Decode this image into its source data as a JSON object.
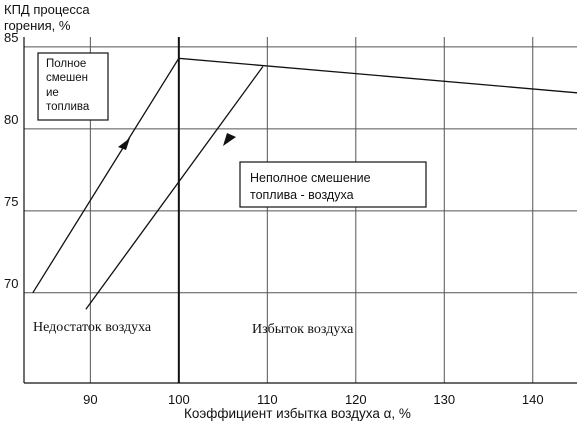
{
  "chart_data": {
    "type": "line",
    "ylabel_lines": [
      "КПД процесса",
      "горения, %"
    ],
    "xlabel": "Коэффициент избытка воздуха α,  %",
    "xlim": [
      82.5,
      145
    ],
    "ylim": [
      64.5,
      85.6
    ],
    "x_ticks": [
      90,
      100,
      110,
      120,
      130,
      140
    ],
    "y_ticks": [
      70,
      75,
      80,
      85
    ],
    "grid": true,
    "series": [
      {
        "name": "Полное смешение топлива",
        "points": [
          [
            83.5,
            70
          ],
          [
            100,
            84.3
          ],
          [
            145,
            82.2
          ]
        ]
      },
      {
        "name": "Неполное смешение топлива - воздуха",
        "points": [
          [
            89.5,
            69
          ],
          [
            109.5,
            83.8
          ]
        ]
      }
    ],
    "legend_boxes": [
      {
        "lines": [
          "Полное",
          "смешен",
          "ие",
          "топлива"
        ]
      },
      {
        "lines": [
          "Неполное смешение",
          "топлива - воздуха"
        ]
      }
    ],
    "annotations": [
      {
        "text": "Недостаток воздуха"
      },
      {
        "text": "Избыток воздуха"
      }
    ],
    "vline_x": 100
  }
}
